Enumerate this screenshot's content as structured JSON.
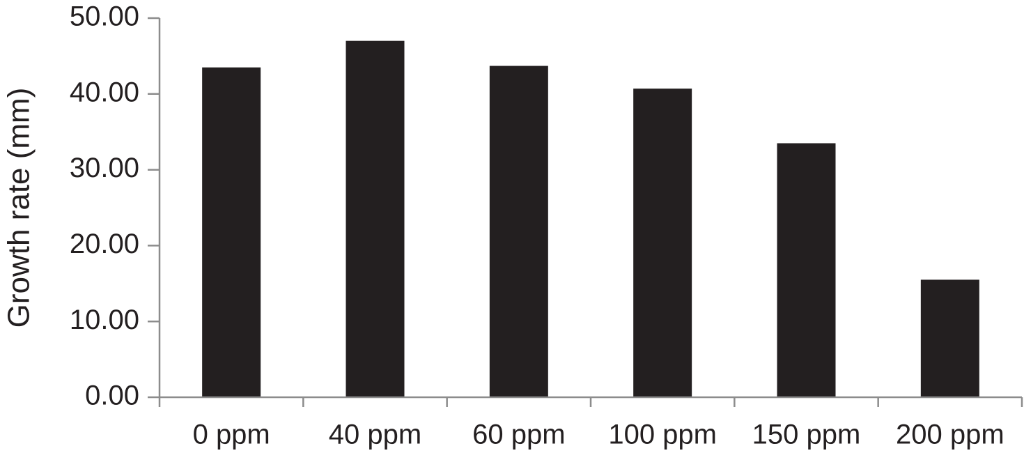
{
  "chart_data": {
    "type": "bar",
    "y_label": "Growth rate (mm)",
    "categories": [
      "0 ppm",
      "40 ppm",
      "60 ppm",
      "100 ppm",
      "150 ppm",
      "200 ppm"
    ],
    "values": [
      43.5,
      47.0,
      43.7,
      40.7,
      33.5,
      15.5
    ],
    "color": "#231f20",
    "ylim": [
      0,
      50
    ],
    "yticks": [
      {
        "value": 0,
        "label": "0.00"
      },
      {
        "value": 10,
        "label": "10.00"
      },
      {
        "value": 20,
        "label": "20.00"
      },
      {
        "value": 30,
        "label": "30.00"
      },
      {
        "value": 40,
        "label": "40.00"
      },
      {
        "value": 50,
        "label": "50.00"
      }
    ],
    "grid": false
  }
}
